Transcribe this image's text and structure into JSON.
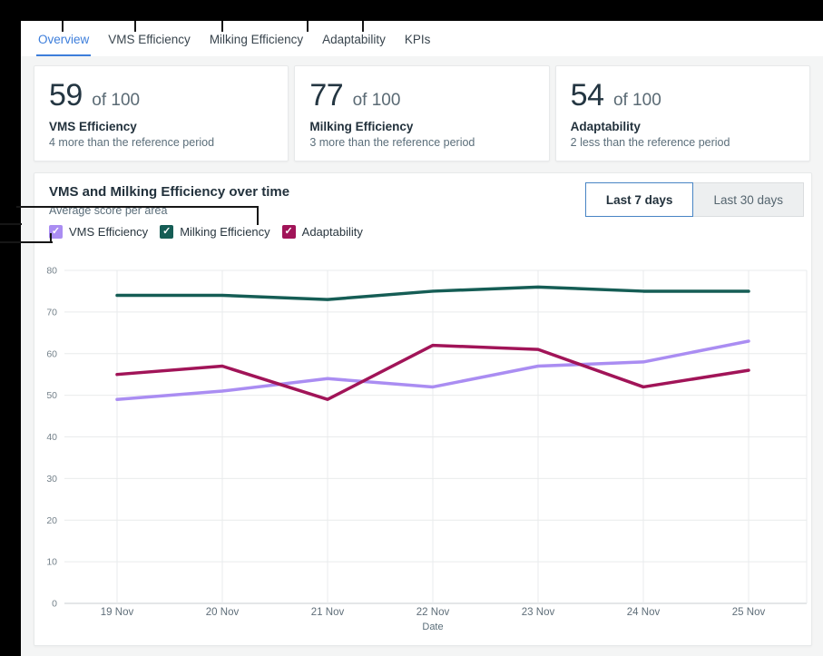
{
  "tabs": [
    {
      "label": "Overview",
      "active": true
    },
    {
      "label": "VMS Efficiency",
      "active": false
    },
    {
      "label": "Milking Efficiency",
      "active": false
    },
    {
      "label": "Adaptability",
      "active": false
    },
    {
      "label": "KPIs",
      "active": false
    }
  ],
  "cards": [
    {
      "value": "59",
      "suffix": "of 100",
      "label": "VMS Efficiency",
      "note": "4 more than the reference period"
    },
    {
      "value": "77",
      "suffix": "of 100",
      "label": "Milking Efficiency",
      "note": "3 more than the reference period"
    },
    {
      "value": "54",
      "suffix": "of 100",
      "label": "Adaptability",
      "note": "2 less than the reference period"
    }
  ],
  "chart_section": {
    "title": "VMS and Milking Efficiency over time",
    "subtitle": "Average score per area",
    "range_buttons": [
      {
        "label": "Last 7 days",
        "selected": true
      },
      {
        "label": "Last 30 days",
        "selected": false
      }
    ],
    "legend": [
      {
        "label": "VMS Efficiency",
        "color": "#aa8df2",
        "checked": true
      },
      {
        "label": "Milking Efficiency",
        "color": "#155d55",
        "checked": true
      },
      {
        "label": "Adaptability",
        "color": "#a11458",
        "checked": true
      }
    ]
  },
  "glyphs": {
    "check": "✓"
  },
  "chart_data": {
    "type": "line",
    "x": [
      "19 Nov",
      "20 Nov",
      "21 Nov",
      "22 Nov",
      "23 Nov",
      "24 Nov",
      "25 Nov"
    ],
    "series": [
      {
        "name": "VMS Efficiency",
        "color": "#aa8df2",
        "values": [
          49,
          51,
          54,
          52,
          57,
          58,
          63
        ]
      },
      {
        "name": "Milking Efficiency",
        "color": "#155d55",
        "values": [
          74,
          74,
          73,
          75,
          76,
          75,
          75
        ]
      },
      {
        "name": "Adaptability",
        "color": "#a11458",
        "values": [
          55,
          57,
          49,
          62,
          61,
          52,
          56
        ]
      }
    ],
    "xlabel": "Date",
    "ylim": [
      0,
      80
    ],
    "ytick_step": 10,
    "grid": true,
    "legend_position": "top-left"
  },
  "colors": {
    "accent_blue": "#3d7edb",
    "vms_purple": "#aa8df2",
    "milking_teal": "#155d55",
    "adaptability_crimson": "#a11458",
    "grid": "#e9ebec",
    "axis": "#c9ced1"
  }
}
